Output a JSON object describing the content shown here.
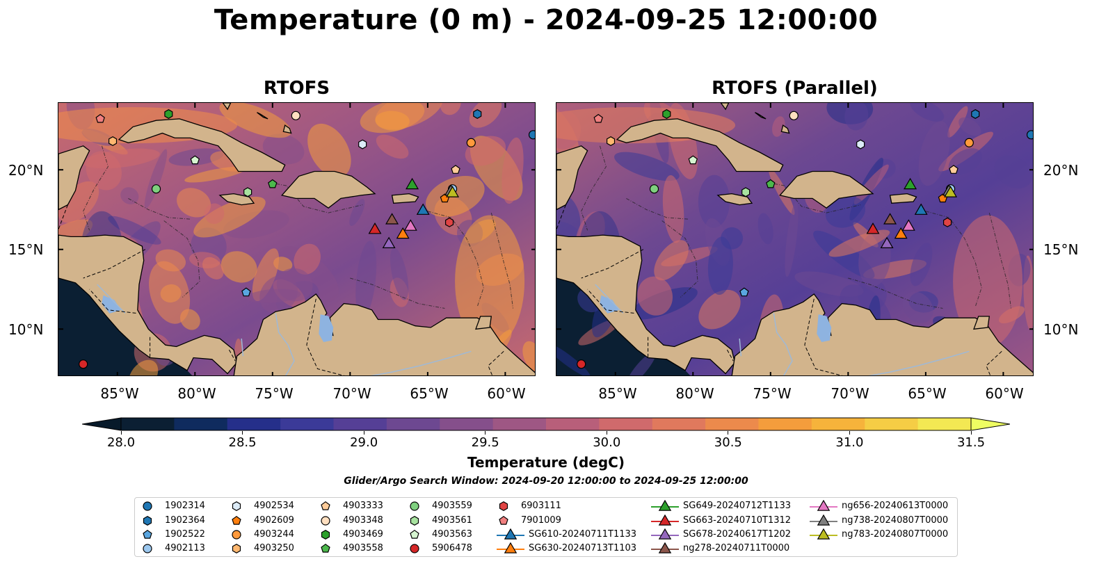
{
  "title": "Temperature (0 m) - 2024-09-25 12:00:00",
  "panels": [
    {
      "title": "RTOFS"
    },
    {
      "title": "RTOFS (Parallel)"
    }
  ],
  "lat_labels": [
    "20°N",
    "15°N",
    "10°N"
  ],
  "lon_labels": [
    "85°W",
    "80°W",
    "75°W",
    "70°W",
    "65°W",
    "60°W"
  ],
  "colorbar": {
    "label": "Temperature (degC)",
    "ticks": [
      "28.0",
      "28.5",
      "29.0",
      "29.5",
      "30.0",
      "30.5",
      "31.0",
      "31.5"
    ],
    "min": 28.0,
    "max": 31.5,
    "colors": [
      "#0b1f33",
      "#0f2b5e",
      "#252f8a",
      "#3b3a98",
      "#553f96",
      "#6d4891",
      "#854f8b",
      "#9e5784",
      "#b85f7a",
      "#d06a6c",
      "#e0795d",
      "#ec8a4c",
      "#f49d3c",
      "#f6b33b",
      "#f5cd45",
      "#f3e853"
    ],
    "under_color": "#071a2a",
    "over_color": "#eefc62"
  },
  "search_window": "Glider/Argo Search Window: 2024-09-20 12:00:00 to 2024-09-25 12:00:00",
  "colors": {
    "land": "#d2b48c",
    "lake": "#8eb3e0",
    "ocean_mid": "#9e5784"
  },
  "legend": [
    {
      "label": "1902314",
      "marker": "circle",
      "color": "#1f77b4"
    },
    {
      "label": "1902364",
      "marker": "hexagon",
      "color": "#1f77b4"
    },
    {
      "label": "1902522",
      "marker": "pentagon",
      "color": "#5aa6e0"
    },
    {
      "label": "4902113",
      "marker": "circle",
      "color": "#9cc8ef"
    },
    {
      "label": "4902534",
      "marker": "hexagon",
      "color": "#dcebf7"
    },
    {
      "label": "4902609",
      "marker": "pentagon",
      "color": "#ff7f0e"
    },
    {
      "label": "4903244",
      "marker": "circle",
      "color": "#ff9a3c"
    },
    {
      "label": "4903250",
      "marker": "hexagon",
      "color": "#ffb870"
    },
    {
      "label": "4903333",
      "marker": "pentagon",
      "color": "#ffcc99"
    },
    {
      "label": "4903348",
      "marker": "circle",
      "color": "#ffdfc0"
    },
    {
      "label": "4903469",
      "marker": "hexagon",
      "color": "#2ca02c"
    },
    {
      "label": "4903558",
      "marker": "pentagon",
      "color": "#4cb84c"
    },
    {
      "label": "4903559",
      "marker": "circle",
      "color": "#7fd07f"
    },
    {
      "label": "4903561",
      "marker": "hexagon",
      "color": "#a8e3a0"
    },
    {
      "label": "4903563",
      "marker": "pentagon",
      "color": "#d6f5d0"
    },
    {
      "label": "5906478",
      "marker": "circle",
      "color": "#d62728"
    },
    {
      "label": "6903111",
      "marker": "hexagon",
      "color": "#e04444"
    },
    {
      "label": "7901009",
      "marker": "pentagon",
      "color": "#f07f7f"
    },
    {
      "label": "SG610-20240711T1133",
      "marker": "triangle-line",
      "color": "#1f77b4"
    },
    {
      "label": "SG630-20240713T1103",
      "marker": "triangle-line",
      "color": "#ff7f0e"
    },
    {
      "label": "SG649-20240712T1133",
      "marker": "triangle-line",
      "color": "#2ca02c"
    },
    {
      "label": "SG663-20240710T1312",
      "marker": "triangle-line",
      "color": "#d62728"
    },
    {
      "label": "SG678-20240617T1202",
      "marker": "triangle-line",
      "color": "#9467bd"
    },
    {
      "label": "ng278-20240711T0000",
      "marker": "triangle-line",
      "color": "#8c564b"
    },
    {
      "label": "ng656-20240613T0000",
      "marker": "triangle-line",
      "color": "#e377c2"
    },
    {
      "label": "ng738-20240807T0000",
      "marker": "triangle-line",
      "color": "#7f7f7f"
    },
    {
      "label": "ng783-20240807T0000",
      "marker": "triangle-line",
      "color": "#bcbd22"
    }
  ],
  "map_markers": [
    {
      "id": "1902314",
      "lon": -58.2,
      "lat": 22.2,
      "marker": "circle",
      "color": "#1f77b4"
    },
    {
      "id": "1902364",
      "lon": -61.8,
      "lat": 23.5,
      "marker": "hexagon",
      "color": "#1f77b4"
    },
    {
      "id": "1902522",
      "lon": -76.7,
      "lat": 12.3,
      "marker": "pentagon",
      "color": "#5aa6e0"
    },
    {
      "id": "4902113",
      "lon": -63.4,
      "lat": 18.8,
      "marker": "circle",
      "color": "#9cc8ef"
    },
    {
      "id": "4902534",
      "lon": -69.2,
      "lat": 21.6,
      "marker": "hexagon",
      "color": "#dcebf7"
    },
    {
      "id": "4902609",
      "lon": -63.9,
      "lat": 18.2,
      "marker": "pentagon",
      "color": "#ff7f0e"
    },
    {
      "id": "4903244",
      "lon": -62.2,
      "lat": 21.7,
      "marker": "circle",
      "color": "#ff9a3c"
    },
    {
      "id": "4903250",
      "lon": -85.3,
      "lat": 21.8,
      "marker": "hexagon",
      "color": "#ffb870"
    },
    {
      "id": "4903333",
      "lon": -63.2,
      "lat": 20.0,
      "marker": "pentagon",
      "color": "#ffcc99"
    },
    {
      "id": "4903348",
      "lon": -73.5,
      "lat": 23.4,
      "marker": "circle",
      "color": "#ffdfc0"
    },
    {
      "id": "4903469",
      "lon": -81.7,
      "lat": 23.5,
      "marker": "hexagon",
      "color": "#2ca02c"
    },
    {
      "id": "4903558",
      "lon": -75.0,
      "lat": 19.1,
      "marker": "pentagon",
      "color": "#4cb84c"
    },
    {
      "id": "4903559",
      "lon": -82.5,
      "lat": 18.8,
      "marker": "circle",
      "color": "#7fd07f"
    },
    {
      "id": "4903561",
      "lon": -76.6,
      "lat": 18.6,
      "marker": "hexagon",
      "color": "#a8e3a0"
    },
    {
      "id": "4903563",
      "lon": -80.0,
      "lat": 20.6,
      "marker": "pentagon",
      "color": "#d6f5d0"
    },
    {
      "id": "5906478",
      "lon": -87.2,
      "lat": 7.8,
      "marker": "circle",
      "color": "#d62728"
    },
    {
      "id": "6903111",
      "lon": -63.6,
      "lat": 16.7,
      "marker": "hexagon",
      "color": "#e04444"
    },
    {
      "id": "7901009",
      "lon": -86.1,
      "lat": 23.2,
      "marker": "pentagon",
      "color": "#f07f7f"
    },
    {
      "id": "SG610-20240711T1133",
      "lon": -65.3,
      "lat": 17.5,
      "marker": "triangle",
      "color": "#1f77b4"
    },
    {
      "id": "SG630-20240713T1103",
      "lon": -66.6,
      "lat": 16.0,
      "marker": "triangle",
      "color": "#ff7f0e"
    },
    {
      "id": "SG649-20240712T1133",
      "lon": -66.0,
      "lat": 19.1,
      "marker": "triangle",
      "color": "#2ca02c"
    },
    {
      "id": "SG663-20240710T1312",
      "lon": -68.4,
      "lat": 16.3,
      "marker": "triangle",
      "color": "#d62728"
    },
    {
      "id": "SG678-20240617T1202",
      "lon": -67.5,
      "lat": 15.4,
      "marker": "triangle",
      "color": "#9467bd"
    },
    {
      "id": "ng278-20240711T0000",
      "lon": -67.3,
      "lat": 16.9,
      "marker": "triangle",
      "color": "#8c564b"
    },
    {
      "id": "ng656-20240613T0000",
      "lon": -66.1,
      "lat": 16.5,
      "marker": "triangle",
      "color": "#e377c2"
    },
    {
      "id": "ng738-20240807T0000",
      "lon": -63.5,
      "lat": 18.7,
      "marker": "triangle",
      "color": "#7f7f7f"
    },
    {
      "id": "ng783-20240807T0000",
      "lon": -63.4,
      "lat": 18.6,
      "marker": "triangle",
      "color": "#bcbd22"
    }
  ]
}
